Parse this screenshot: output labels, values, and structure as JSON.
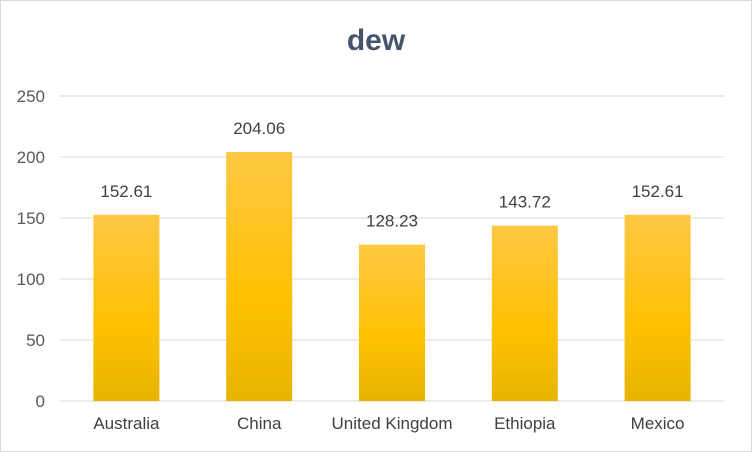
{
  "chart_data": {
    "type": "bar",
    "title": "dew",
    "categories": [
      "Australia",
      "China",
      "United Kingdom",
      "Ethiopia",
      "Mexico"
    ],
    "values": [
      152.61,
      204.06,
      128.23,
      143.72,
      152.61
    ],
    "data_labels": [
      "152.61",
      "204.06",
      "128.23",
      "143.72",
      "152.61"
    ],
    "ylim": [
      0,
      250
    ],
    "yticks": [
      "0",
      "50",
      "100",
      "150",
      "200",
      "250"
    ],
    "xlabel": "",
    "ylabel": "",
    "grid": true,
    "legend": "none",
    "colors": {
      "bar_top": "#ffc844",
      "bar_mid": "#ffc000",
      "bar_bottom": "#e6b400",
      "grid": "#d9d9d9",
      "title": "#44546a"
    }
  }
}
